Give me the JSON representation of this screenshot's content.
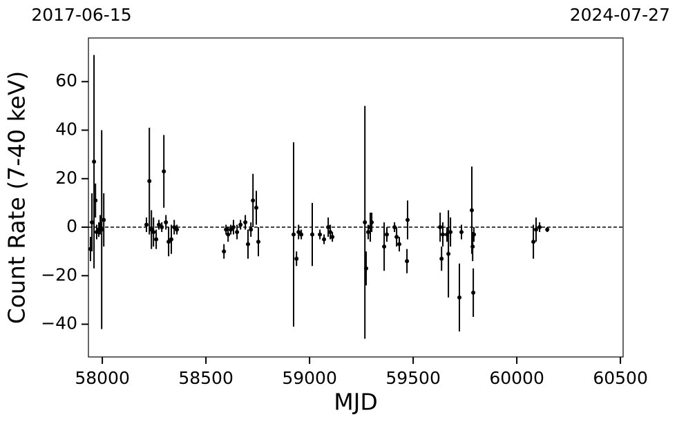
{
  "chart_data": {
    "type": "scatter",
    "annotations": [
      "2017-06-15",
      "2024-07-27"
    ],
    "xlabel": "MJD",
    "ylabel": "Count Rate (7-40 keV)",
    "xlim": [
      57933,
      60513
    ],
    "ylim": [
      -53.5,
      78
    ],
    "xticks": [
      58000,
      58500,
      59000,
      59500,
      60000,
      60500
    ],
    "yticks": [
      {
        "value": -40,
        "label": "−40"
      },
      {
        "value": -20,
        "label": "−20"
      },
      0,
      20,
      40,
      60
    ],
    "hline": 0,
    "series": [
      {
        "color": "#000000",
        "x": [
          57943,
          57950,
          57960,
          57967,
          57973,
          57983,
          57990,
          57997,
          58007,
          58213,
          58227,
          58237,
          58247,
          58260,
          58273,
          58287,
          58297,
          58307,
          58320,
          58333,
          58347,
          58360,
          58587,
          58597,
          58607,
          58620,
          58633,
          58650,
          58667,
          58690,
          58703,
          58717,
          58727,
          58743,
          58753,
          58923,
          58937,
          58947,
          58960,
          59013,
          59050,
          59070,
          59090,
          59100,
          59110,
          59267,
          59273,
          59283,
          59293,
          59300,
          59360,
          59373,
          59410,
          59420,
          59433,
          59470,
          59473,
          59630,
          59637,
          59643,
          59663,
          59670,
          59680,
          59723,
          59733,
          59783,
          59787,
          59790,
          59793,
          60080,
          60093,
          60110,
          60147
        ],
        "values": [
          -9,
          2,
          27,
          11,
          -2,
          -1,
          1,
          -1,
          3,
          1,
          19,
          -1,
          -2,
          -5,
          1,
          0,
          23,
          2,
          -6,
          -5,
          0,
          -1,
          -10,
          -1,
          -3,
          -1,
          0,
          -2,
          1,
          2,
          -7,
          -1,
          11,
          8,
          -6,
          -3,
          -13,
          -2,
          -3,
          -3,
          -3,
          -5,
          0,
          -2,
          -4,
          2,
          -17,
          -2,
          0,
          2,
          -8,
          -3,
          0,
          -4,
          -7,
          -14,
          3,
          0,
          -13,
          -3,
          -3,
          -11,
          -2,
          -29,
          -2,
          7,
          -8,
          -27,
          -3,
          -6,
          -1,
          0,
          -1
        ],
        "errors": [
          5,
          12,
          44,
          7,
          3,
          3,
          4,
          41,
          11,
          3,
          22,
          8,
          6,
          4,
          2,
          2,
          15,
          3,
          6,
          6,
          3,
          2,
          3,
          2,
          3,
          2,
          3,
          3,
          2,
          3,
          6,
          3,
          11,
          7,
          6,
          38,
          3,
          3,
          2,
          13,
          2,
          2,
          4,
          3,
          2,
          48,
          7,
          3,
          6,
          4,
          10,
          3,
          2,
          4,
          3,
          5,
          8,
          6,
          5,
          5,
          3,
          18,
          6,
          14,
          3,
          18,
          6,
          10,
          3,
          7,
          5,
          2,
          1
        ]
      }
    ]
  }
}
